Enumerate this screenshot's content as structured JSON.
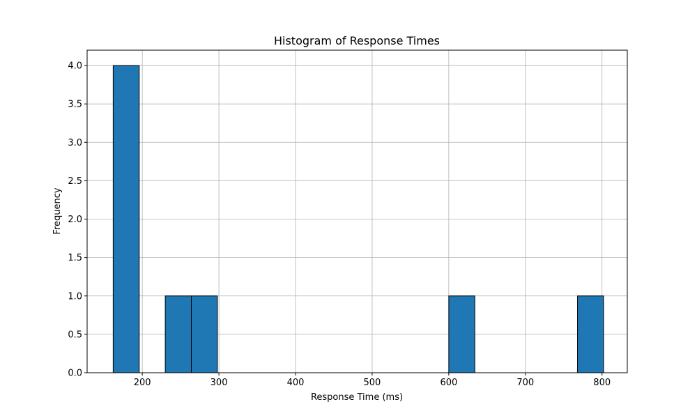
{
  "chart_data": {
    "type": "bar",
    "title": "Histogram of Response Times",
    "xlabel": "Response Time (ms)",
    "ylabel": "Frequency",
    "xlim": [
      128,
      833
    ],
    "ylim": [
      0,
      4.2
    ],
    "grid": true,
    "bar_color": "#1f77b4",
    "edge_color": "#000000",
    "bins": [
      {
        "start": 162,
        "end": 196,
        "count": 4
      },
      {
        "start": 196,
        "end": 230,
        "count": 0
      },
      {
        "start": 230,
        "end": 264,
        "count": 1
      },
      {
        "start": 264,
        "end": 298,
        "count": 1
      },
      {
        "start": 298,
        "end": 332,
        "count": 0
      },
      {
        "start": 332,
        "end": 366,
        "count": 0
      },
      {
        "start": 366,
        "end": 400,
        "count": 0
      },
      {
        "start": 400,
        "end": 434,
        "count": 0
      },
      {
        "start": 434,
        "end": 468,
        "count": 0
      },
      {
        "start": 468,
        "end": 502,
        "count": 0
      },
      {
        "start": 502,
        "end": 536,
        "count": 0
      },
      {
        "start": 536,
        "end": 570,
        "count": 0
      },
      {
        "start": 570,
        "end": 600,
        "count": 0
      },
      {
        "start": 600,
        "end": 634,
        "count": 1
      },
      {
        "start": 634,
        "end": 668,
        "count": 0
      },
      {
        "start": 668,
        "end": 702,
        "count": 0
      },
      {
        "start": 702,
        "end": 736,
        "count": 0
      },
      {
        "start": 736,
        "end": 768,
        "count": 0
      },
      {
        "start": 768,
        "end": 802,
        "count": 1
      }
    ],
    "x_ticks": [
      200,
      300,
      400,
      500,
      600,
      700,
      800
    ],
    "x_tick_labels": [
      "200",
      "300",
      "400",
      "500",
      "600",
      "700",
      "800"
    ],
    "y_ticks": [
      0,
      0.5,
      1,
      1.5,
      2,
      2.5,
      3,
      3.5,
      4
    ],
    "y_tick_labels": [
      "0.0",
      "0.5",
      "1.0",
      "1.5",
      "2.0",
      "2.5",
      "3.0",
      "3.5",
      "4.0"
    ]
  }
}
